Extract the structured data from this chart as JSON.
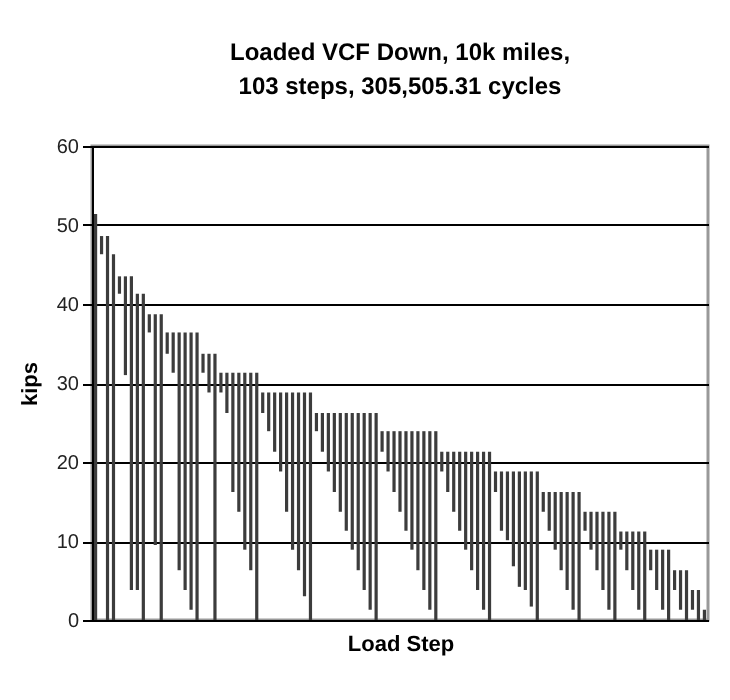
{
  "chart_data": {
    "type": "bar",
    "title": "Loaded VCF Down, 10k miles,\n103 steps, 305,505.31 cycles",
    "xlabel": "Load Step",
    "ylabel": "kips",
    "categories": [
      null,
      null,
      null,
      null,
      null,
      null,
      null,
      null,
      null,
      null,
      null,
      null,
      null,
      null,
      null,
      null,
      null,
      null,
      null,
      null,
      null,
      null,
      null,
      null,
      null,
      null,
      null,
      null,
      null,
      null,
      null,
      null,
      null,
      null,
      null,
      null,
      null,
      null,
      null,
      null,
      null,
      null,
      null,
      null,
      null,
      null,
      null,
      null,
      null,
      null,
      null,
      null,
      null,
      null,
      null,
      null,
      null,
      null,
      null,
      null,
      null,
      null,
      null,
      null,
      null,
      null,
      null,
      null,
      null,
      null,
      null,
      null,
      null,
      null,
      null,
      null,
      null,
      null,
      null,
      null,
      null,
      null,
      null,
      null,
      null,
      null,
      null,
      null,
      null,
      null,
      null,
      null,
      null,
      null,
      null,
      null,
      null,
      null,
      null,
      null,
      null,
      null,
      null
    ],
    "base": [
      0,
      46.3,
      0,
      0,
      41.3,
      31,
      3.8,
      3.8,
      0,
      36.4,
      9.5,
      0,
      33.7,
      31.3,
      6.3,
      3.8,
      1.3,
      0,
      31.3,
      28.8,
      0,
      28.8,
      26.2,
      16.2,
      13.7,
      8.9,
      6.3,
      0,
      26.2,
      23.9,
      21.3,
      18.8,
      13.7,
      8.9,
      6.3,
      3,
      0,
      23.9,
      21.3,
      18.8,
      16.2,
      13.7,
      11.3,
      8.9,
      6.3,
      3.8,
      1.3,
      0,
      21.3,
      18.8,
      16.2,
      13.7,
      11.3,
      8.9,
      6.3,
      3.8,
      1.3,
      0,
      18.8,
      16.2,
      13.7,
      11.3,
      8.9,
      6.3,
      3.8,
      1.3,
      0,
      16.2,
      11.3,
      10.1,
      6.8,
      4.2,
      3.8,
      1.7,
      0,
      13.7,
      11.3,
      8.9,
      6.3,
      3.8,
      1.3,
      0,
      11.3,
      8.9,
      6.3,
      3.8,
      1.3,
      0,
      8.9,
      6.3,
      3.8,
      1.3,
      0,
      6.3,
      3.8,
      1.3,
      0,
      3.8,
      1.3,
      0,
      1.3,
      0,
      0
    ],
    "values": [
      51.4,
      2.3,
      48.6,
      46.3,
      2.2,
      12.5,
      39.7,
      37.5,
      41.3,
      2.3,
      29.2,
      38.7,
      2.7,
      5.1,
      30.1,
      32.6,
      35.1,
      36.4,
      2.4,
      4.9,
      33.7,
      2.5,
      5.1,
      15.1,
      17.6,
      22.4,
      25,
      31.3,
      2.6,
      4.9,
      7.5,
      10,
      15.1,
      19.9,
      22.5,
      25.8,
      28.8,
      2.3,
      4.9,
      7.4,
      10,
      12.5,
      14.9,
      17.3,
      19.9,
      22.4,
      24.9,
      26.2,
      2.6,
      5.1,
      7.7,
      10.2,
      12.6,
      15,
      17.6,
      20.1,
      22.6,
      23.9,
      2.5,
      5.1,
      7.6,
      10,
      12.4,
      15,
      17.5,
      20,
      21.3,
      2.6,
      7.5,
      8.7,
      12,
      14.6,
      15,
      17.1,
      18.8,
      2.5,
      4.9,
      7.3,
      9.9,
      12.4,
      14.9,
      16.2,
      2.4,
      4.8,
      7.4,
      9.9,
      12.4,
      13.7,
      2.3,
      4.9,
      7.4,
      9.9,
      11.2,
      2.6,
      5.1,
      7.6,
      8.9,
      2.5,
      5,
      6.3,
      2.5,
      3.8,
      1.3
    ],
    "color": "#3c3c3c",
    "ylim": [
      0,
      60
    ],
    "yticks": [
      0,
      10,
      20,
      30,
      40,
      50,
      60
    ],
    "grid": "y",
    "tick_labels": "y"
  }
}
